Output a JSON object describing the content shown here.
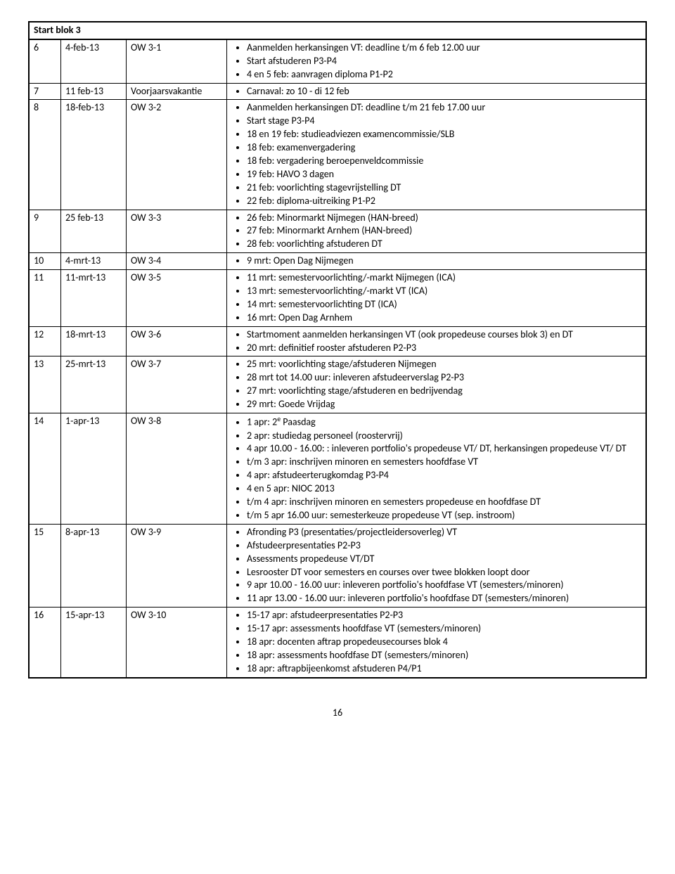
{
  "header": "Start blok 3",
  "page_number": "16",
  "rows": [
    {
      "num": "6",
      "date": "4-feb-13",
      "code": "OW 3-1",
      "items": [
        "Aanmelden herkansingen VT: deadline t/m 6 feb 12.00 uur",
        "Start afstuderen P3-P4",
        "4 en 5 feb: aanvragen diploma P1-P2"
      ]
    },
    {
      "num": "7",
      "date": "11 feb-13",
      "code": "Voorjaarsvakantie",
      "items": [
        "Carnaval: zo 10 - di 12 feb"
      ]
    },
    {
      "num": "8",
      "date": "18-feb-13",
      "code": "OW 3-2",
      "items": [
        "Aanmelden herkansingen DT: deadline t/m 21 feb 17.00 uur",
        "Start stage P3-P4",
        "18 en 19 feb: studieadviezen examencommissie/SLB",
        "18 feb: examenvergadering",
        "18 feb: vergadering beroepenveldcommissie",
        "19 feb: HAVO 3 dagen",
        "21  feb: voorlichting stagevrijstelling DT",
        "22 feb: diploma-uitreiking P1-P2"
      ]
    },
    {
      "num": "9",
      "date": "25 feb-13",
      "code": "OW 3-3",
      "items": [
        "26 feb: Minormarkt Nijmegen (HAN-breed)",
        "27 feb: Minormarkt Arnhem (HAN-breed)",
        "28 feb: voorlichting afstuderen DT"
      ]
    },
    {
      "num": "10",
      "date": "4-mrt-13",
      "code": "OW 3-4",
      "items": [
        "9 mrt: Open Dag Nijmegen"
      ]
    },
    {
      "num": "11",
      "date": "11-mrt-13",
      "code": "OW 3-5",
      "items": [
        "11 mrt: semestervoorlichting/-markt Nijmegen (ICA)",
        "13 mrt: semestervoorlichting/-markt VT (ICA)",
        "14 mrt: semestervoorlichting DT (ICA)",
        "16 mrt: Open Dag Arnhem"
      ]
    },
    {
      "num": "12",
      "date": "18-mrt-13",
      "code": "OW 3-6",
      "items": [
        "Startmoment aanmelden herkansingen VT (ook propedeuse courses blok 3) en DT",
        "20 mrt: definitief rooster afstuderen P2-P3"
      ]
    },
    {
      "num": "13",
      "date": "25-mrt-13",
      "code": "OW 3-7",
      "items": [
        "25 mrt: voorlichting stage/afstuderen Nijmegen",
        "28 mrt tot 14.00 uur: inleveren afstudeerverslag P2-P3",
        "27 mrt: voorlichting stage/afstuderen en bedrijvendag",
        "29 mrt: Goede Vrijdag"
      ]
    },
    {
      "num": "14",
      "date": "1-apr-13",
      "code": "OW 3-8",
      "items_html": [
        "1 apr: 2<sup>e</sup> Paasdag",
        "2 apr: studiedag personeel (roostervrij)",
        "4 apr 10.00 - 16.00: : inleveren portfolio's propedeuse VT/ DT, herkansingen propedeuse VT/ DT",
        "t/m 3 apr: inschrijven minoren en semesters hoofdfase VT",
        "4 apr: afstudeerterugkomdag P3-P4",
        "4 en 5 apr: NIOC 2013",
        "t/m 4 apr: inschrijven minoren en semesters propedeuse en hoofdfase DT",
        "t/m 5 apr 16.00 uur: semesterkeuze propedeuse VT (sep. instroom)"
      ]
    },
    {
      "num": "15",
      "date": "8-apr-13",
      "code": "OW 3-9",
      "items": [
        "Afronding P3 (presentaties/projectleidersoverleg) VT",
        "Afstudeerpresentaties P2-P3",
        "Assessments propedeuse VT/DT",
        "Lesrooster DT voor semesters en courses over twee blokken loopt door",
        "9 apr 10.00 - 16.00 uur: inleveren portfolio's hoofdfase VT (semesters/minoren)",
        "11 apr 13.00 - 16.00 uur: inleveren portfolio's hoofdfase DT (semesters/minoren)"
      ]
    },
    {
      "num": "16",
      "date": "15-apr-13",
      "code": "OW 3-10",
      "items": [
        "15-17 apr: afstudeerpresentaties P2-P3",
        "15-17 apr: assessments hoofdfase VT (semesters/minoren)",
        "18 apr: docenten aftrap propedeusecourses  blok 4",
        "18 apr: assessments hoofdfase DT (semesters/minoren)",
        "18 apr: aftrapbijeenkomst afstuderen P4/P1"
      ]
    }
  ]
}
